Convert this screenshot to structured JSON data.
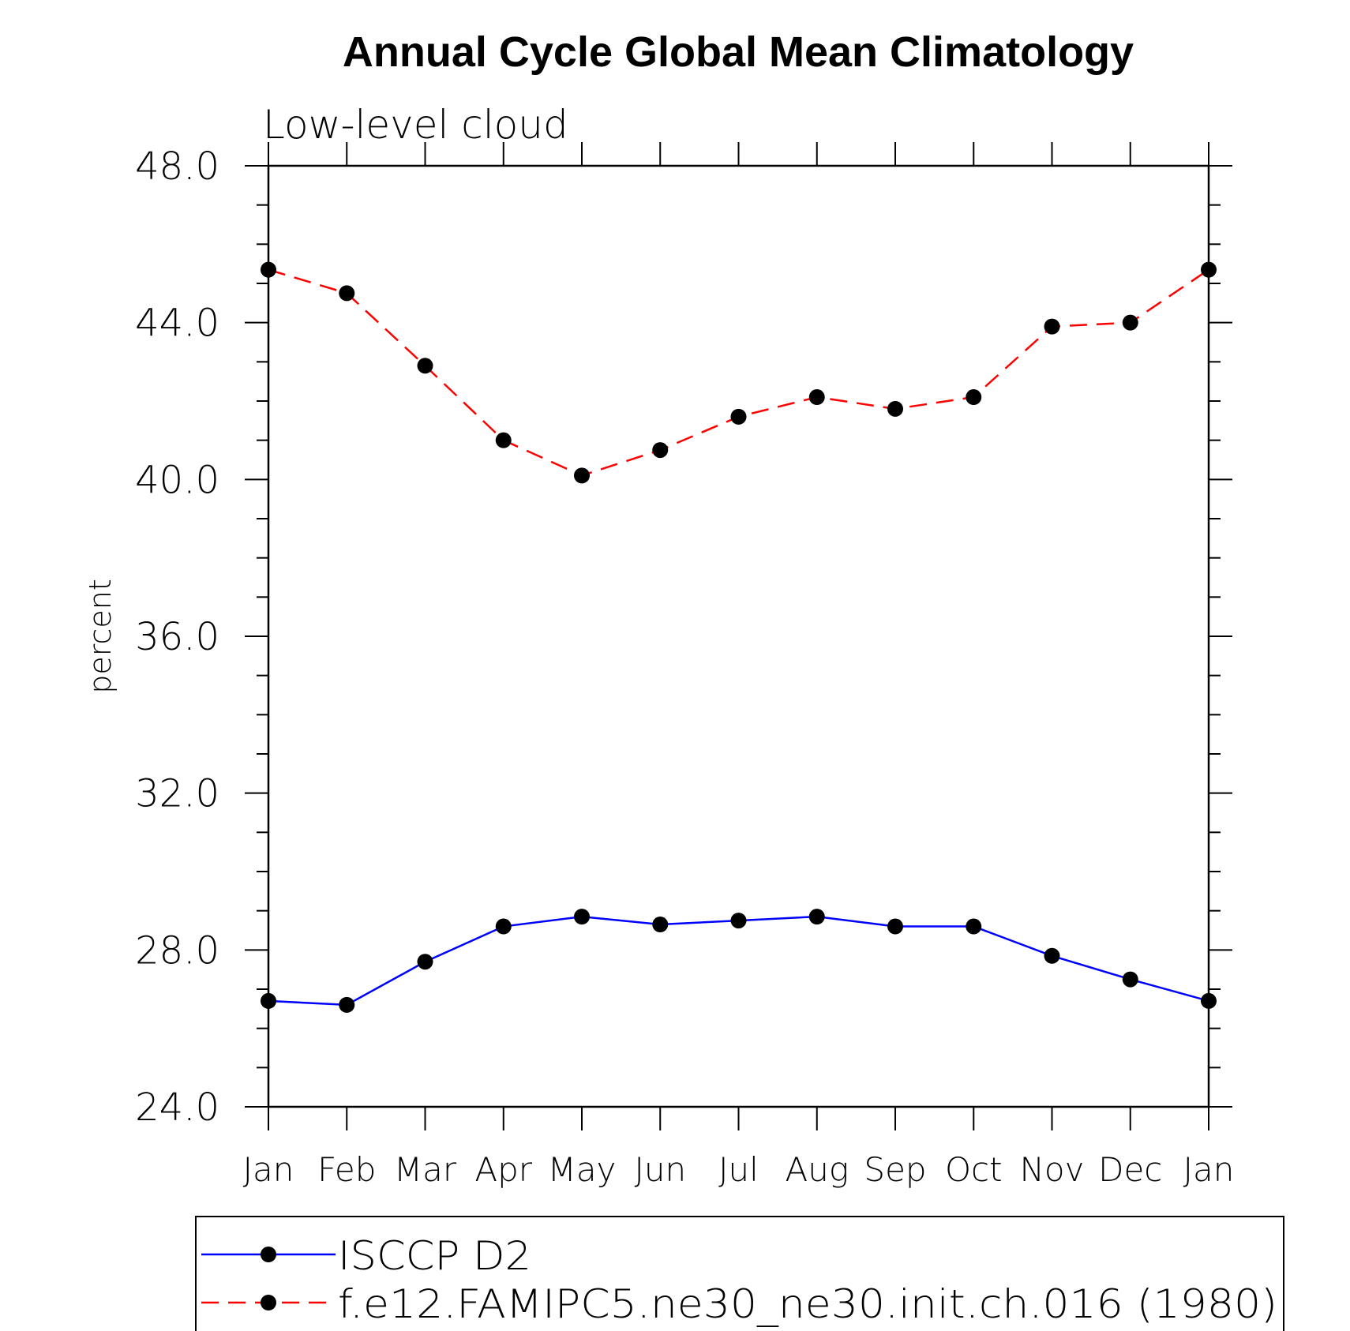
{
  "chart_data": {
    "type": "line",
    "title": "Annual Cycle Global Mean Climatology",
    "subtitle": "Low-level cloud",
    "ylabel": "percent",
    "xlabel": "",
    "categories": [
      "Jan",
      "Feb",
      "Mar",
      "Apr",
      "May",
      "Jun",
      "Jul",
      "Aug",
      "Sep",
      "Oct",
      "Nov",
      "Dec",
      "Jan"
    ],
    "ylim": [
      24.0,
      48.0
    ],
    "yticks": [
      "24.0",
      "28.0",
      "32.0",
      "36.0",
      "40.0",
      "44.0",
      "48.0"
    ],
    "ytick_values": [
      24,
      28,
      32,
      36,
      40,
      44,
      48
    ],
    "y_minor_step": 1,
    "grid": false,
    "legend_position": "bottom",
    "series": [
      {
        "name": "ISCCP D2",
        "color": "#0000ff",
        "style": "solid",
        "marker": "filled-circle",
        "values": [
          26.7,
          26.6,
          27.7,
          28.6,
          28.85,
          28.65,
          28.75,
          28.85,
          28.6,
          28.6,
          27.85,
          27.25,
          26.7
        ]
      },
      {
        "name": "f.e12.FAMIPC5.ne30_ne30.init.ch.016 (1980)",
        "color": "#ff0000",
        "style": "dashed",
        "marker": "filled-circle",
        "values": [
          45.35,
          44.75,
          42.9,
          41.0,
          40.1,
          40.75,
          41.6,
          42.1,
          41.8,
          42.1,
          43.9,
          44.0,
          45.35
        ]
      }
    ]
  }
}
